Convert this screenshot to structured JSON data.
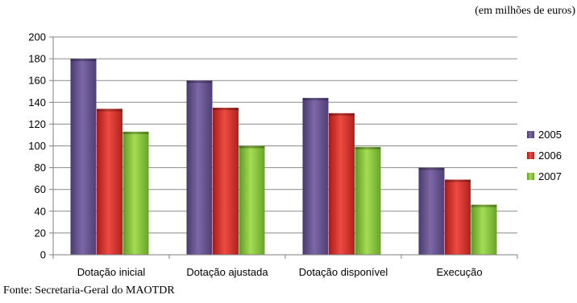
{
  "chart_data": {
    "type": "bar",
    "title": "",
    "xlabel": "",
    "ylabel": "",
    "unit_note": "(em milhões de euros)",
    "source": "Fonte: Secretaria-Geral do MAOTDR",
    "categories": [
      "Dotação inicial",
      "Dotação ajustada",
      "Dotação disponível",
      "Execução"
    ],
    "series": [
      {
        "name": "2005",
        "color": "#6a5591",
        "values": [
          180,
          160,
          144,
          80
        ]
      },
      {
        "name": "2006",
        "color": "#d9302b",
        "values": [
          134,
          135,
          130,
          69
        ]
      },
      {
        "name": "2007",
        "color": "#8cc63f",
        "values": [
          113,
          100,
          99,
          46
        ]
      }
    ],
    "ylim": [
      0,
      200
    ],
    "yticks": [
      0,
      20,
      40,
      60,
      80,
      100,
      120,
      140,
      160,
      180,
      200
    ],
    "grid": true,
    "legend_position": "right"
  }
}
